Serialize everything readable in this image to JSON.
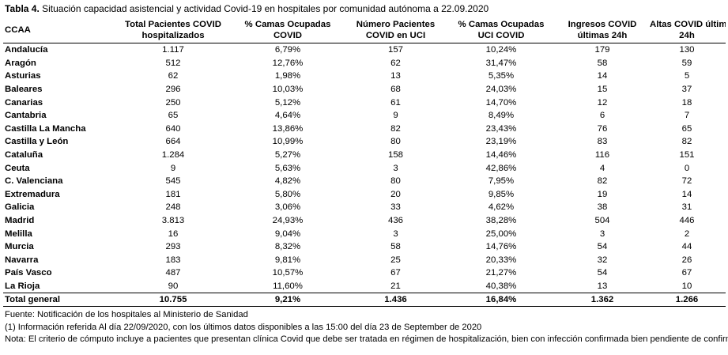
{
  "caption": {
    "label": "Tabla 4.",
    "text": " Situación capacidad asistencial y actividad Covid-19 en hospitales por comunidad autónoma a 22.09.2020"
  },
  "headers": [
    {
      "line1": "CCAA",
      "line2": ""
    },
    {
      "line1": "Total Pacientes COVID",
      "line2": "hospitalizados"
    },
    {
      "line1": "% Camas Ocupadas",
      "line2": "COVID"
    },
    {
      "line1": "Número Pacientes",
      "line2": "COVID en UCI"
    },
    {
      "line1": "% Camas Ocupadas",
      "line2": "UCI COVID"
    },
    {
      "line1": "Ingresos COVID",
      "line2": "últimas 24h"
    },
    {
      "line1": "Altas COVID últimas",
      "line2": "24h"
    }
  ],
  "rows": [
    [
      "Andalucía",
      "1.117",
      "6,79%",
      "157",
      "10,24%",
      "179",
      "130"
    ],
    [
      "Aragón",
      "512",
      "12,76%",
      "62",
      "31,47%",
      "58",
      "59"
    ],
    [
      "Asturias",
      "62",
      "1,98%",
      "13",
      "5,35%",
      "14",
      "5"
    ],
    [
      "Baleares",
      "296",
      "10,03%",
      "68",
      "24,03%",
      "15",
      "37"
    ],
    [
      "Canarias",
      "250",
      "5,12%",
      "61",
      "14,70%",
      "12",
      "18"
    ],
    [
      "Cantabria",
      "65",
      "4,64%",
      "9",
      "8,49%",
      "6",
      "7"
    ],
    [
      "Castilla La Mancha",
      "640",
      "13,86%",
      "82",
      "23,43%",
      "76",
      "65"
    ],
    [
      "Castilla y León",
      "664",
      "10,99%",
      "80",
      "23,19%",
      "83",
      "82"
    ],
    [
      "Cataluña",
      "1.284",
      "5,27%",
      "158",
      "14,46%",
      "116",
      "151"
    ],
    [
      "Ceuta",
      "9",
      "5,63%",
      "3",
      "42,86%",
      "4",
      "0"
    ],
    [
      "C. Valenciana",
      "545",
      "4,82%",
      "80",
      "7,95%",
      "82",
      "72"
    ],
    [
      "Extremadura",
      "181",
      "5,80%",
      "20",
      "9,85%",
      "19",
      "14"
    ],
    [
      "Galicia",
      "248",
      "3,06%",
      "33",
      "4,62%",
      "38",
      "31"
    ],
    [
      "Madrid",
      "3.813",
      "24,93%",
      "436",
      "38,28%",
      "504",
      "446"
    ],
    [
      "Melilla",
      "16",
      "9,04%",
      "3",
      "25,00%",
      "3",
      "2"
    ],
    [
      "Murcia",
      "293",
      "8,32%",
      "58",
      "14,76%",
      "54",
      "44"
    ],
    [
      "Navarra",
      "183",
      "9,81%",
      "25",
      "20,33%",
      "32",
      "26"
    ],
    [
      "País Vasco",
      "487",
      "10,57%",
      "67",
      "21,27%",
      "54",
      "67"
    ],
    [
      "La Rioja",
      "90",
      "11,60%",
      "21",
      "40,38%",
      "13",
      "10"
    ]
  ],
  "total": [
    "Total general",
    "10.755",
    "9,21%",
    "1.436",
    "16,84%",
    "1.362",
    "1.266"
  ],
  "notes": [
    "Fuente: Notificación de los hospitales al Ministerio de Sanidad",
    "(1) Información referida Al día 22/09/2020, con los últimos datos disponibles a las 15:00 del día 23 de September de 2020",
    "Nota:  El criterio de cómputo incluye a pacientes que presentan clínica Covid que debe ser tratada en régimen de hospitalización, bien con infección confirmada bien pendiente de confirmar."
  ]
}
